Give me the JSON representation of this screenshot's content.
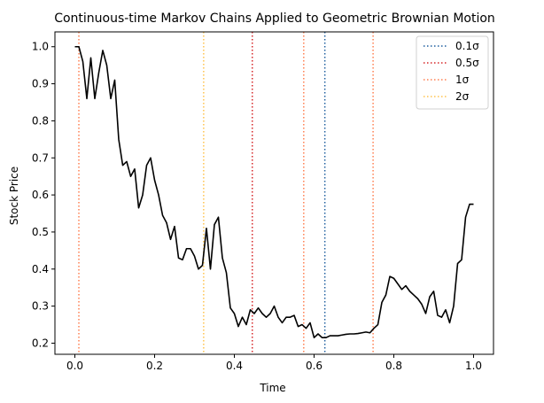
{
  "chart_data": {
    "type": "line",
    "title": "Continuous-time Markov Chains Applied to Geometric Brownian Motion",
    "xlabel": "Time",
    "ylabel": "Stock Price",
    "xlim": [
      -0.05,
      1.05
    ],
    "ylim": [
      0.17,
      1.04
    ],
    "xticks": [
      0.0,
      0.2,
      0.4,
      0.6,
      0.8,
      1.0
    ],
    "xtick_labels": [
      "0.0",
      "0.2",
      "0.4",
      "0.6",
      "0.8",
      "1.0"
    ],
    "yticks": [
      0.2,
      0.3,
      0.4,
      0.5,
      0.6,
      0.7,
      0.8,
      0.9,
      1.0
    ],
    "ytick_labels": [
      "0.2",
      "0.3",
      "0.4",
      "0.5",
      "0.6",
      "0.7",
      "0.8",
      "0.9",
      "1.0"
    ],
    "grid": false,
    "legend_position": "top-right",
    "price_series": {
      "color": "#000000",
      "x": [
        0.0,
        0.01,
        0.02,
        0.03,
        0.04,
        0.05,
        0.06,
        0.07,
        0.08,
        0.09,
        0.1,
        0.11,
        0.12,
        0.13,
        0.14,
        0.15,
        0.16,
        0.17,
        0.18,
        0.19,
        0.2,
        0.21,
        0.22,
        0.23,
        0.24,
        0.25,
        0.26,
        0.27,
        0.28,
        0.29,
        0.3,
        0.31,
        0.32,
        0.33,
        0.34,
        0.35,
        0.36,
        0.37,
        0.38,
        0.39,
        0.4,
        0.41,
        0.42,
        0.43,
        0.44,
        0.45,
        0.46,
        0.47,
        0.48,
        0.49,
        0.5,
        0.51,
        0.52,
        0.53,
        0.54,
        0.55,
        0.56,
        0.57,
        0.58,
        0.59,
        0.6,
        0.61,
        0.62,
        0.63,
        0.64,
        0.65,
        0.66,
        0.67,
        0.68,
        0.69,
        0.7,
        0.71,
        0.72,
        0.73,
        0.74,
        0.75,
        0.76,
        0.77,
        0.78,
        0.79,
        0.8,
        0.81,
        0.82,
        0.83,
        0.84,
        0.85,
        0.86,
        0.87,
        0.88,
        0.89,
        0.9,
        0.91,
        0.92,
        0.93,
        0.94,
        0.95,
        0.96,
        0.97,
        0.98,
        0.99,
        1.0
      ],
      "y": [
        1.0,
        1.0,
        0.96,
        0.86,
        0.97,
        0.86,
        0.93,
        0.99,
        0.95,
        0.86,
        0.91,
        0.75,
        0.68,
        0.69,
        0.65,
        0.67,
        0.565,
        0.6,
        0.68,
        0.7,
        0.64,
        0.6,
        0.545,
        0.525,
        0.48,
        0.515,
        0.43,
        0.425,
        0.455,
        0.455,
        0.435,
        0.4,
        0.41,
        0.51,
        0.4,
        0.52,
        0.54,
        0.43,
        0.39,
        0.295,
        0.28,
        0.245,
        0.27,
        0.25,
        0.29,
        0.28,
        0.295,
        0.28,
        0.27,
        0.28,
        0.3,
        0.27,
        0.255,
        0.27,
        0.27,
        0.275,
        0.245,
        0.25,
        0.24,
        0.255,
        0.215,
        0.225,
        0.215,
        0.215,
        0.22,
        0.22,
        0.22,
        0.222,
        0.224,
        0.225,
        0.225,
        0.226,
        0.228,
        0.23,
        0.228,
        0.24,
        0.25,
        0.31,
        0.33,
        0.38,
        0.375,
        0.36,
        0.345,
        0.355,
        0.34,
        0.33,
        0.32,
        0.305,
        0.28,
        0.325,
        0.34,
        0.275,
        0.27,
        0.29,
        0.255,
        0.3,
        0.415,
        0.425,
        0.54,
        0.575,
        0.575
      ]
    },
    "vertical_lines": [
      {
        "x": 0.627,
        "color": "#1f5f9f"
      },
      {
        "x": 0.445,
        "color": "#d62728"
      },
      {
        "x": 0.01,
        "color": "#ff7f50"
      },
      {
        "x": 0.574,
        "color": "#ff7f50"
      },
      {
        "x": 0.748,
        "color": "#ff7f50"
      },
      {
        "x": 0.323,
        "color": "#ffc34d"
      }
    ],
    "legend": [
      {
        "label": "0.1σ",
        "color": "#1f5f9f"
      },
      {
        "label": "0.5σ",
        "color": "#d62728"
      },
      {
        "label": "1σ",
        "color": "#ff7f50"
      },
      {
        "label": "2σ",
        "color": "#ffc34d"
      }
    ]
  }
}
